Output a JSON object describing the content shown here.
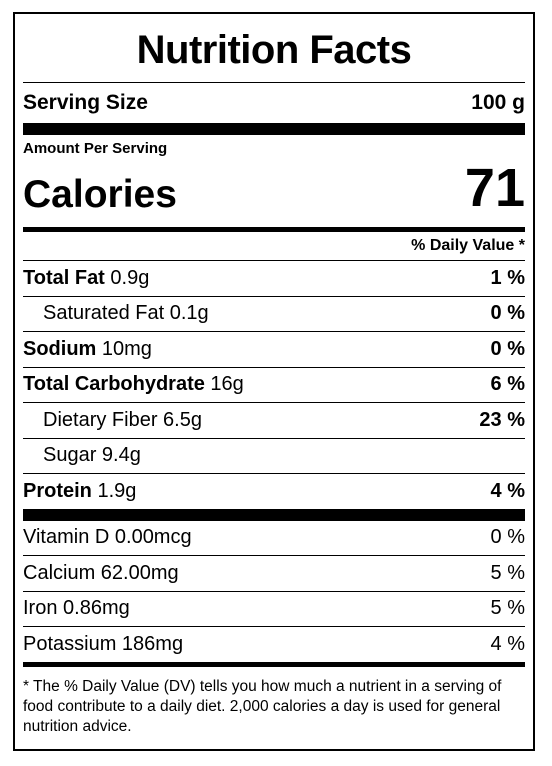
{
  "title": "Nutrition Facts",
  "serving": {
    "label": "Serving Size",
    "value": "100 g"
  },
  "amount_per_serving": "Amount Per Serving",
  "calories": {
    "label": "Calories",
    "value": "71"
  },
  "dv_header": "% Daily Value *",
  "nutrients": [
    {
      "name": "Total Fat",
      "amount": " 0.9g",
      "dv": "1 %"
    },
    {
      "name": "Saturated Fat 0.1g",
      "dv": "0 %"
    },
    {
      "name": "Sodium",
      "amount": " 10mg",
      "dv": "0 %"
    },
    {
      "name": "Total Carbohydrate",
      "amount": " 16g",
      "dv": "6 %"
    },
    {
      "name": "Dietary Fiber 6.5g",
      "dv": "23 %"
    },
    {
      "name": "Sugar 9.4g",
      "dv": ""
    },
    {
      "name": "Protein",
      "amount": " 1.9g",
      "dv": "4 %"
    }
  ],
  "vitamins": [
    {
      "name": "Vitamin D 0.00mcg",
      "dv": "0 %"
    },
    {
      "name": "Calcium 62.00mg",
      "dv": "5 %"
    },
    {
      "name": "Iron 0.86mg",
      "dv": "5 %"
    },
    {
      "name": "Potassium 186mg",
      "dv": "4 %"
    }
  ],
  "footnote": "* The % Daily Value (DV) tells you how much a nutrient in a serving of food contribute to a daily diet. 2,000 calories a day is used for general nutrition advice."
}
